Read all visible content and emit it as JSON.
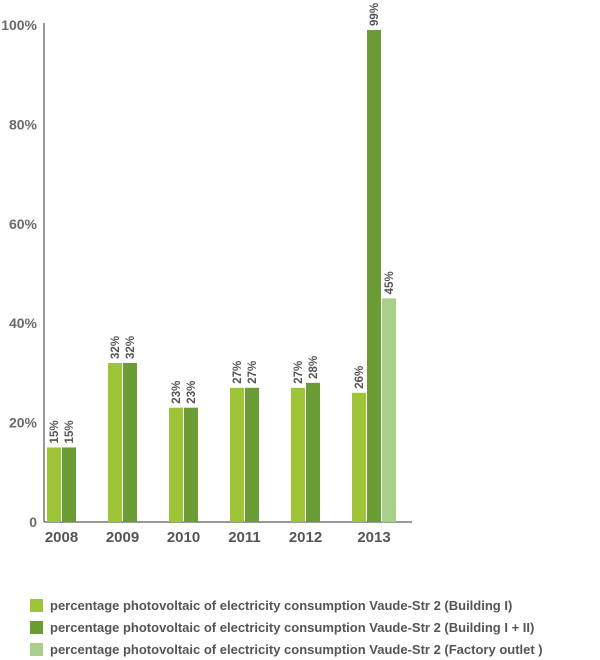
{
  "chart_data": {
    "type": "bar",
    "title": "",
    "xlabel": "",
    "ylabel": "",
    "ylim": [
      0,
      100
    ],
    "yticks": [
      {
        "value": 0,
        "label": "0"
      },
      {
        "value": 20,
        "label": "20%"
      },
      {
        "value": 40,
        "label": "40%"
      },
      {
        "value": 60,
        "label": "60%"
      },
      {
        "value": 80,
        "label": "80%"
      },
      {
        "value": 100,
        "label": "100%"
      }
    ],
    "categories": [
      "2008",
      "2009",
      "2010",
      "2011",
      "2012",
      "2013"
    ],
    "series": [
      {
        "name": "percentage photovoltaic of electricity consumption Vaude-Str 2 (Building I)",
        "color": "#9dc537",
        "values": [
          15,
          32,
          23,
          27,
          27,
          26
        ],
        "labels": [
          "15%",
          "32%",
          "23%",
          "27%",
          "27%",
          "26%"
        ]
      },
      {
        "name": "percentage photovoltaic of electricity consumption Vaude-Str 2 (Building I + II)",
        "color": "#6c9c36",
        "values": [
          15,
          32,
          23,
          27,
          28,
          99
        ],
        "labels": [
          "15%",
          "32%",
          "23%",
          "27%",
          "28%",
          "99%"
        ]
      },
      {
        "name": "percentage photovoltaic of electricity consumption Vaude-Str 2 (Factory outlet )",
        "color": "#a9cf8b",
        "values": [
          null,
          null,
          null,
          null,
          null,
          45
        ],
        "labels": [
          null,
          null,
          null,
          null,
          null,
          "45%"
        ]
      }
    ],
    "grid": false,
    "legend_position": "bottom"
  },
  "legend": {
    "items": [
      {
        "label": "percentage photovoltaic of electricity consumption Vaude-Str 2 (Building I)",
        "color": "#9dc537"
      },
      {
        "label": "percentage photovoltaic of electricity consumption Vaude-Str 2 (Building I + II)",
        "color": "#6c9c36"
      },
      {
        "label": "percentage photovoltaic of electricity consumption Vaude-Str 2 (Factory outlet )",
        "color": "#a9cf8b"
      }
    ]
  }
}
